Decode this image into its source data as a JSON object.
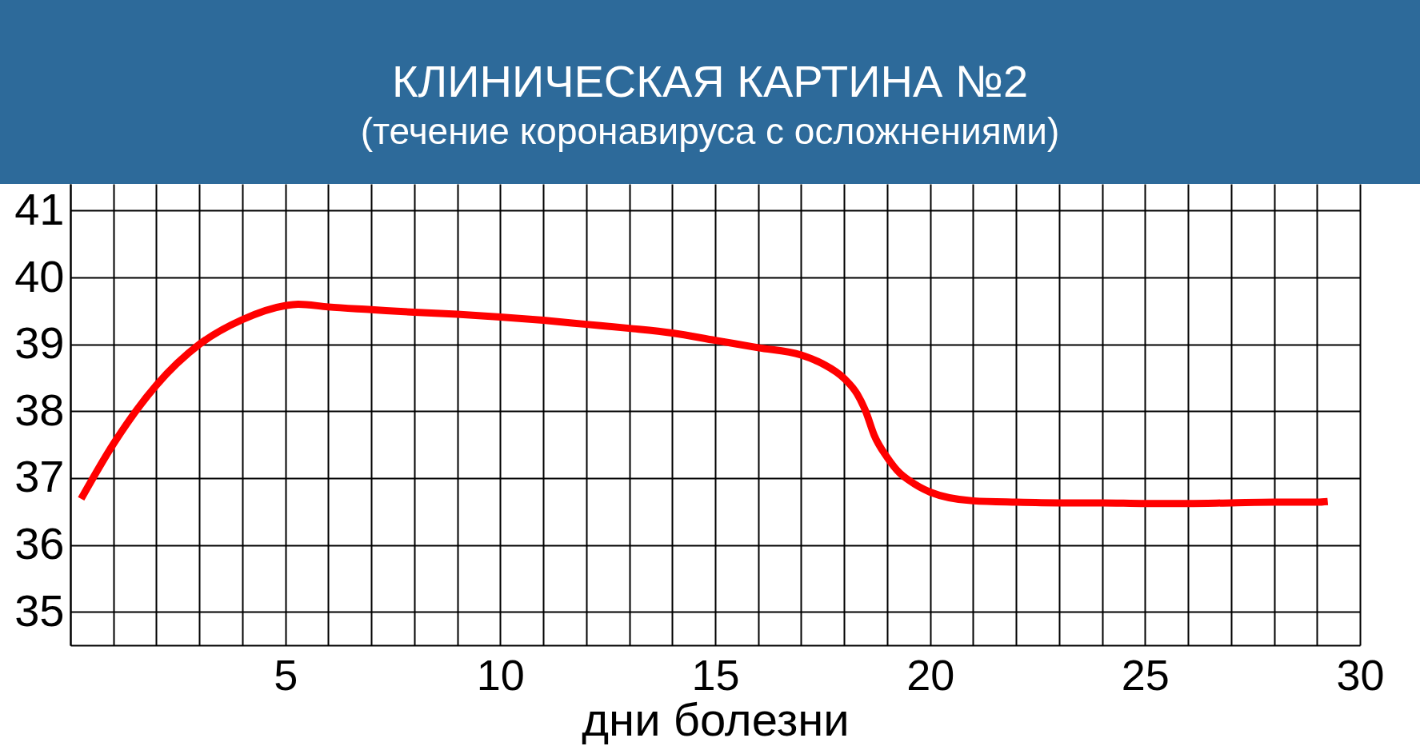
{
  "chart_data": {
    "type": "line",
    "title": "КЛИНИЧЕСКАЯ КАРТИНА №2",
    "subtitle": "(течение коронавируса с осложнениями)",
    "xlabel": "дни болезни",
    "x": [
      0.25,
      1,
      2,
      3,
      4,
      5,
      5.3,
      6,
      7,
      8,
      9,
      10,
      11,
      12,
      13,
      14,
      15,
      16,
      17,
      17.5,
      18,
      18.3,
      18.5,
      18.7,
      19,
      19.3,
      19.5,
      20,
      21,
      22,
      23,
      24,
      25,
      26,
      27,
      28,
      29,
      29.25
    ],
    "series": [
      {
        "color": "#ff0000",
        "values": [
          36.69,
          37.51,
          38.39,
          39.0,
          39.37,
          39.58,
          39.6,
          39.56,
          39.52,
          39.48,
          39.45,
          39.41,
          39.36,
          39.3,
          39.24,
          39.17,
          39.06,
          38.95,
          38.84,
          38.71,
          38.49,
          38.26,
          38.0,
          37.64,
          37.31,
          37.07,
          36.97,
          36.79,
          36.66,
          36.64,
          36.63,
          36.63,
          36.62,
          36.62,
          36.63,
          36.64,
          36.64,
          36.65
        ]
      }
    ],
    "xlim": [
      0,
      30
    ],
    "ylim": [
      34.5,
      41.4
    ],
    "xticks": [
      {
        "value": 0,
        "label": null
      },
      {
        "value": 1,
        "label": null
      },
      {
        "value": 2,
        "label": null
      },
      {
        "value": 3,
        "label": null
      },
      {
        "value": 4,
        "label": null
      },
      5,
      {
        "value": 6,
        "label": null
      },
      {
        "value": 7,
        "label": null
      },
      {
        "value": 8,
        "label": null
      },
      {
        "value": 9,
        "label": null
      },
      10,
      {
        "value": 11,
        "label": null
      },
      {
        "value": 12,
        "label": null
      },
      {
        "value": 13,
        "label": null
      },
      {
        "value": 14,
        "label": null
      },
      15,
      {
        "value": 16,
        "label": null
      },
      {
        "value": 17,
        "label": null
      },
      {
        "value": 18,
        "label": null
      },
      {
        "value": 19,
        "label": null
      },
      20,
      {
        "value": 21,
        "label": null
      },
      {
        "value": 22,
        "label": null
      },
      {
        "value": 23,
        "label": null
      },
      {
        "value": 24,
        "label": null
      },
      25,
      {
        "value": 26,
        "label": null
      },
      {
        "value": 27,
        "label": null
      },
      {
        "value": 28,
        "label": null
      },
      {
        "value": 29,
        "label": null
      },
      30
    ],
    "yticks": [
      35,
      36,
      37,
      38,
      39,
      40,
      41
    ],
    "grid": true,
    "marker": "none",
    "line_style": "solid"
  }
}
